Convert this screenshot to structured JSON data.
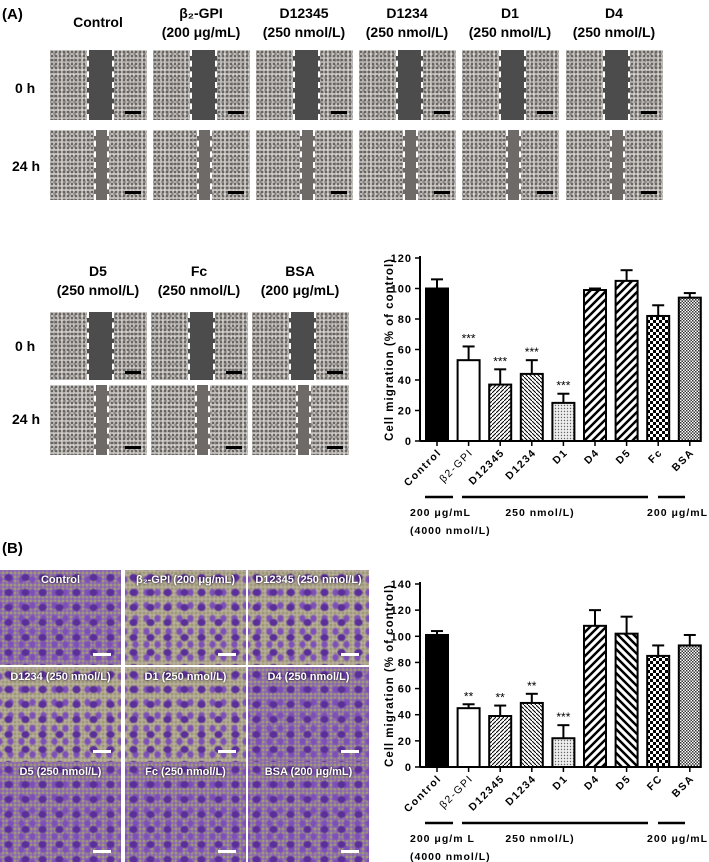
{
  "panel_a": {
    "label": "(A)",
    "row_labels": [
      "0 h",
      "24 h"
    ],
    "columns_top": [
      {
        "name": "Control",
        "conc": ""
      },
      {
        "name": "β₂-GPI",
        "conc": "(200 μg/mL)"
      },
      {
        "name": "D12345",
        "conc": "(250 nmol/L)"
      },
      {
        "name": "D1234",
        "conc": "(250 nmol/L)"
      },
      {
        "name": "D1",
        "conc": "(250 nmol/L)"
      },
      {
        "name": "D4",
        "conc": "(250 nmol/L)"
      }
    ],
    "columns_bottom": [
      {
        "name": "D5",
        "conc": "(250 nmol/L)"
      },
      {
        "name": "Fc",
        "conc": "(250 nmol/L)"
      },
      {
        "name": "BSA",
        "conc": "(200 μg/mL)"
      }
    ]
  },
  "panel_b": {
    "label": "(B)",
    "images": [
      "Control",
      "β₂-GPI (200 μg/mL)",
      "D12345 (250 nmol/L)",
      "D1234 (250 nmol/L)",
      "D1 (250 nmol/L)",
      "D4 (250 nmol/L)",
      "D5 (250 nmol/L)",
      "Fc (250 nmol/L)",
      "BSA (200 μg/mL)"
    ]
  },
  "chart_data": [
    {
      "type": "bar",
      "panel": "A",
      "ylabel": "Cell migration (% of control)",
      "ylim": [
        0,
        120
      ],
      "yticks": [
        0,
        20,
        40,
        60,
        80,
        100,
        120
      ],
      "categories": [
        "Control",
        "β2-GPI",
        "D12345",
        "D1234",
        "D1",
        "D4",
        "D5",
        "Fc",
        "BSA"
      ],
      "values": [
        100,
        53,
        37,
        44,
        25,
        99,
        105,
        82,
        94
      ],
      "errors": [
        6,
        9,
        10,
        9,
        6,
        1,
        7,
        7,
        3
      ],
      "significance": [
        "",
        "***",
        "***",
        "***",
        "***",
        "",
        "",
        "",
        ""
      ],
      "patterns": [
        "solid-black",
        "white",
        "fine-diagonal",
        "fine-diagonal-reverse",
        "dots",
        "wide-diagonal",
        "wide-diagonal",
        "checker",
        "fine-checker"
      ],
      "groups": [
        {
          "label": "200  μg/mL",
          "sublabel": "(4000 nmol/L)"
        },
        {
          "label": "250 nmol/L)",
          "sublabel": ""
        },
        {
          "label": "200  μg/mL",
          "sublabel": ""
        }
      ]
    },
    {
      "type": "bar",
      "panel": "B",
      "ylabel": "Cell migration (% of control)",
      "ylim": [
        0,
        140
      ],
      "yticks": [
        0,
        20,
        40,
        60,
        80,
        100,
        120,
        140
      ],
      "categories": [
        "Control",
        "β2-GPI",
        "D12345",
        "D1234",
        "D1",
        "D4",
        "D5",
        "FC",
        "BSA"
      ],
      "values": [
        101,
        45,
        39,
        49,
        22,
        108,
        102,
        85,
        93
      ],
      "errors": [
        3,
        3,
        8,
        7,
        10,
        12,
        13,
        8,
        8
      ],
      "significance": [
        "",
        "**",
        "**",
        "**",
        "***",
        "",
        "",
        "",
        ""
      ],
      "patterns": [
        "solid-black",
        "white",
        "fine-diagonal",
        "fine-diagonal-reverse",
        "dots",
        "wide-diagonal",
        "wide-diagonal-reverse",
        "checker",
        "fine-checker"
      ],
      "groups": [
        {
          "label": "200  μg/m L",
          "sublabel": "(4000 nmol/L)"
        },
        {
          "label": "250 nmol/L)",
          "sublabel": ""
        },
        {
          "label": "200  μg/mL",
          "sublabel": ""
        }
      ]
    }
  ]
}
